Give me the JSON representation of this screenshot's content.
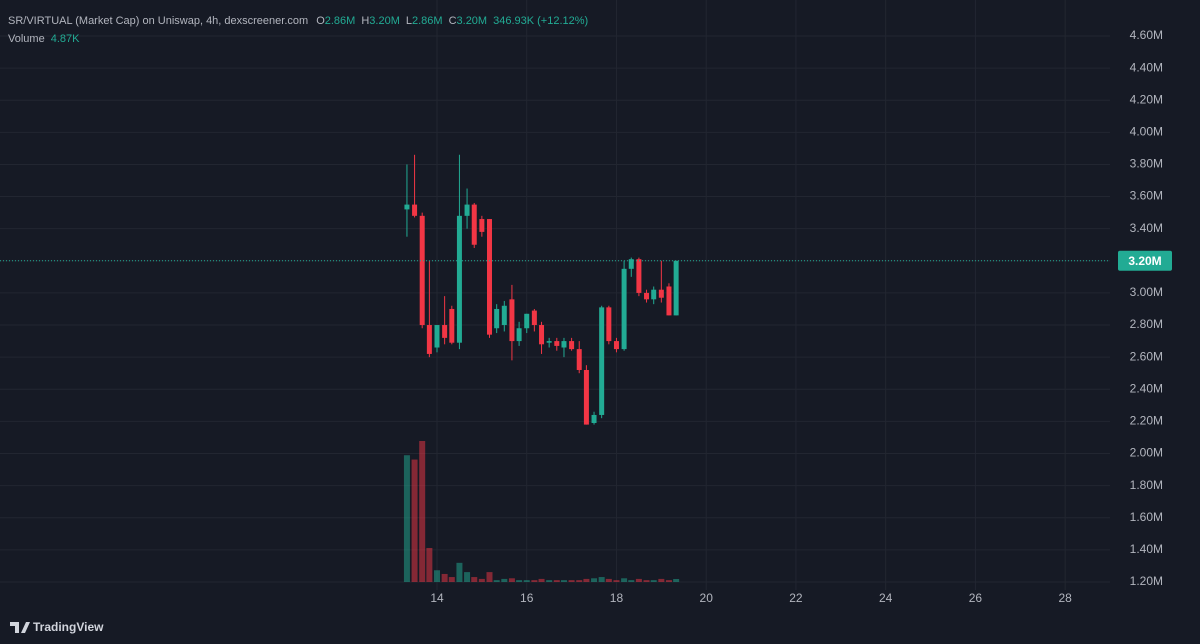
{
  "chart_data": {
    "type": "candlestick",
    "title": "SR/VIRTUAL (Market Cap) on Uniswap, 4h, dexscreener.com",
    "legend": {
      "open_key": "O",
      "open": "2.86M",
      "high_key": "H",
      "high": "3.20M",
      "low_key": "L",
      "low": "2.86M",
      "close_key": "C",
      "close": "3.20M",
      "change": "346.93K (+12.12%)",
      "volume_key": "Volume",
      "volume": "4.87K"
    },
    "x": [
      13.33,
      13.5,
      13.67,
      13.83,
      14,
      14.17,
      14.33,
      14.5,
      14.67,
      14.83,
      15,
      15.17,
      15.33,
      15.5,
      15.67,
      15.83,
      16,
      16.17,
      16.33,
      16.5,
      16.67,
      16.83,
      17,
      17.17,
      17.33,
      17.5,
      17.67,
      17.83,
      18,
      18.17,
      18.33,
      18.5,
      18.67,
      18.83,
      19,
      19.17,
      19.33
    ],
    "open": [
      3.52,
      3.55,
      3.48,
      2.8,
      2.66,
      2.8,
      2.9,
      2.69,
      3.48,
      3.55,
      3.46,
      3.46,
      2.78,
      2.8,
      2.96,
      2.7,
      2.78,
      2.89,
      2.8,
      2.69,
      2.7,
      2.66,
      2.7,
      2.65,
      2.52,
      2.19,
      2.24,
      2.91,
      2.7,
      2.65,
      3.15,
      3.21,
      3.0,
      2.96,
      3.02,
      3.04,
      2.86
    ],
    "high": [
      3.8,
      3.86,
      3.5,
      3.2,
      2.8,
      2.98,
      2.92,
      3.86,
      3.65,
      3.56,
      3.48,
      3.46,
      2.93,
      2.95,
      3.05,
      2.82,
      2.87,
      2.9,
      2.82,
      2.72,
      2.72,
      2.72,
      2.72,
      2.7,
      2.55,
      2.26,
      2.92,
      2.92,
      2.72,
      3.2,
      3.22,
      3.22,
      3.02,
      3.04,
      3.2,
      3.06,
      3.2
    ],
    "low": [
      3.35,
      3.47,
      2.78,
      2.6,
      2.63,
      2.68,
      2.68,
      2.65,
      3.4,
      3.28,
      3.35,
      2.72,
      2.75,
      2.76,
      2.58,
      2.67,
      2.75,
      2.76,
      2.62,
      2.66,
      2.64,
      2.6,
      2.64,
      2.5,
      2.18,
      2.18,
      2.22,
      2.68,
      2.63,
      2.64,
      3.1,
      2.98,
      2.94,
      2.93,
      2.94,
      2.86,
      2.86
    ],
    "close": [
      3.55,
      3.48,
      2.8,
      2.62,
      2.8,
      2.72,
      2.69,
      3.48,
      3.55,
      3.3,
      3.38,
      2.74,
      2.9,
      2.92,
      2.7,
      2.78,
      2.87,
      2.8,
      2.68,
      2.7,
      2.67,
      2.7,
      2.65,
      2.52,
      2.18,
      2.24,
      2.91,
      2.7,
      2.65,
      3.15,
      3.21,
      3.0,
      2.96,
      3.02,
      2.97,
      2.86,
      3.2
    ],
    "volume": [
      205,
      198,
      228,
      55,
      19,
      13,
      8,
      31,
      16,
      8,
      5,
      16,
      3,
      5,
      6,
      3,
      3,
      3,
      5,
      3,
      3,
      3,
      3,
      3,
      5,
      6,
      8,
      5,
      3,
      6,
      3,
      5,
      3,
      3,
      5,
      3,
      4.87
    ],
    "up_color": "#22ab94",
    "down_color": "#f23645",
    "volume_up_color": "rgba(34,171,148,0.5)",
    "volume_down_color": "rgba(242,54,69,0.5)",
    "last_price": {
      "value": 3.2,
      "label": "3.20M"
    },
    "xlim": [
      4.26,
      29.0
    ],
    "xticks": [
      14,
      16,
      18,
      20,
      22,
      24,
      26,
      28
    ],
    "ylim": [
      1.15,
      4.824
    ],
    "yticks": [
      {
        "value": 1.2,
        "label": "1.20M"
      },
      {
        "value": 1.4,
        "label": "1.40M"
      },
      {
        "value": 1.6,
        "label": "1.60M"
      },
      {
        "value": 1.8,
        "label": "1.80M"
      },
      {
        "value": 2.0,
        "label": "2.00M"
      },
      {
        "value": 2.2,
        "label": "2.20M"
      },
      {
        "value": 2.4,
        "label": "2.40M"
      },
      {
        "value": 2.6,
        "label": "2.60M"
      },
      {
        "value": 2.8,
        "label": "2.80M"
      },
      {
        "value": 3.0,
        "label": "3.00M"
      },
      {
        "value": 3.2,
        "label": "3.20M"
      },
      {
        "value": 3.4,
        "label": "3.40M"
      },
      {
        "value": 3.6,
        "label": "3.60M"
      },
      {
        "value": 3.8,
        "label": "3.80M"
      },
      {
        "value": 4.0,
        "label": "4.00M"
      },
      {
        "value": 4.2,
        "label": "4.20M"
      },
      {
        "value": 4.4,
        "label": "4.40M"
      },
      {
        "value": 4.6,
        "label": "4.60M"
      }
    ],
    "grid": true,
    "footer": "TradingView"
  }
}
